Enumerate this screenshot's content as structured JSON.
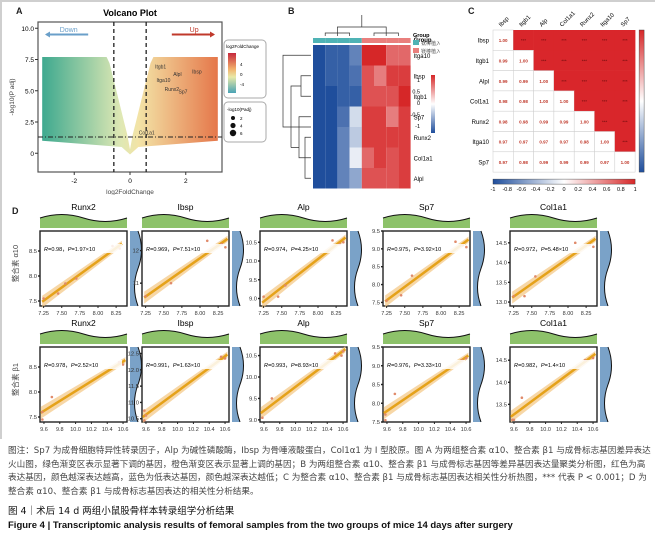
{
  "panels": {
    "A": {
      "label": "A",
      "chart_data": {
        "type": "scatter",
        "title": "Volcano Plot",
        "xlabel": "log2FoldChange",
        "ylabel": "-log10(P adj)",
        "xlim": [
          -3.3,
          3.3
        ],
        "ylim": [
          -1.5,
          10.5
        ],
        "xticks": [
          -2,
          0,
          2
        ],
        "yticks": [
          0,
          2.5,
          5.0,
          7.5,
          10.0
        ],
        "ytick_labels": [
          "0",
          "2.5",
          "5.0",
          "7.5",
          "10.0"
        ],
        "xtick_labels": [
          "-2",
          "0",
          "2"
        ],
        "vlines": [
          -0.58,
          0.58
        ],
        "hline": 1.3,
        "annotations": {
          "down": "Down",
          "up": "Up"
        },
        "labeled_genes": [
          {
            "name": "Itgb1",
            "x": 1.1,
            "y": 6.8
          },
          {
            "name": "Alpl",
            "x": 1.7,
            "y": 6.2
          },
          {
            "name": "Ibsp",
            "x": 2.4,
            "y": 6.4
          },
          {
            "name": "Itga10",
            "x": 1.2,
            "y": 5.7
          },
          {
            "name": "Runx2",
            "x": 1.5,
            "y": 5.0
          },
          {
            "name": "Sp7",
            "x": 1.9,
            "y": 4.8
          },
          {
            "name": "Col1a1",
            "x": 0.6,
            "y": 1.5
          }
        ],
        "legend_color": {
          "title": "log2FoldChange",
          "ticks": [
            "4",
            "0",
            "-4"
          ]
        },
        "legend_size": {
          "title": "-log10(Padj)",
          "ticks": [
            "2",
            "4",
            "6"
          ]
        }
      }
    },
    "B": {
      "label": "B",
      "chart_data": {
        "type": "heatmap",
        "rows": [
          "Itga10",
          "Ibsp",
          "Itgb1",
          "Sp7",
          "Runx2",
          "Col1a1",
          "Alpl"
        ],
        "group_label": "Group",
        "legend_group_title": "Group",
        "groups": [
          {
            "name": "钛棒植入组",
            "color": "#4fb3b5"
          },
          {
            "name": "镁棒植入组",
            "color": "#e97f7d"
          }
        ],
        "values": [
          [
            -1.0,
            -0.9,
            -0.9,
            -0.7,
            1.0,
            1.1,
            0.7,
            0.7
          ],
          [
            -1.0,
            -0.9,
            -0.9,
            -0.8,
            0.8,
            0.6,
            0.9,
            0.9
          ],
          [
            -1.0,
            -1.0,
            -0.9,
            -0.9,
            0.8,
            0.8,
            0.8,
            1.0
          ],
          [
            -1.1,
            -1.1,
            -0.8,
            -0.2,
            0.9,
            0.9,
            0.6,
            0.9
          ],
          [
            -1.1,
            -1.1,
            -0.7,
            -0.3,
            0.9,
            0.9,
            0.9,
            0.9
          ],
          [
            -1.1,
            -1.1,
            -0.7,
            -0.1,
            0.7,
            0.9,
            0.8,
            0.9
          ],
          [
            -1.1,
            -1.1,
            -0.7,
            -0.5,
            0.8,
            0.8,
            0.8,
            0.9
          ]
        ],
        "colorbar_ticks": [
          "1",
          "0.5",
          "0",
          "-0.5",
          "-1"
        ],
        "range": [
          -1,
          1
        ]
      }
    },
    "C": {
      "label": "C",
      "chart_data": {
        "type": "heatmap",
        "labels": [
          "Ibsp",
          "Itgb1",
          "Alpl",
          "Col1a1",
          "Runx2",
          "Itga10",
          "Sp7"
        ],
        "col_labels": [
          "Ibsp",
          "Itgb1",
          "Alp",
          "Col1a1",
          "Runx2",
          "Itga10",
          "Sp7"
        ],
        "lower": [
          [
            "1.00"
          ],
          [
            "0.99",
            "1.00"
          ],
          [
            "0.99",
            "0.99",
            "1.00"
          ],
          [
            "0.98",
            "0.98",
            "1.00",
            "1.00"
          ],
          [
            "0.98",
            "0.98",
            "0.99",
            "0.99",
            "1.00"
          ],
          [
            "0.97",
            "0.97",
            "0.97",
            "0.97",
            "0.98",
            "1.00"
          ],
          [
            "0.97",
            "0.98",
            "0.99",
            "0.99",
            "0.99",
            "0.97",
            "1.00"
          ]
        ],
        "upper_marker": "***",
        "colorbar_ticks": [
          "-1",
          "-0.8",
          "-0.6",
          "-0.4",
          "-0.2",
          "0",
          "0.2",
          "0.4",
          "0.6",
          "0.8",
          "1"
        ],
        "range": [
          -1,
          1
        ]
      }
    },
    "D": {
      "label": "D",
      "chart_data": [
        {
          "type": "scatter",
          "row": "整合素 α10",
          "gene": "Runx2",
          "R": "0.98",
          "P": "1.97×10",
          "xticks": [
            "7.25",
            "7.50",
            "7.75",
            "8.00",
            "8.25"
          ],
          "xlim": [
            7.2,
            8.4
          ],
          "yticks": [
            "7.5",
            "8.0",
            "8.5"
          ],
          "ylim": [
            7.4,
            8.9
          ],
          "points": [
            [
              7.25,
              7.55
            ],
            [
              7.45,
              7.65
            ],
            [
              7.55,
              7.85
            ],
            [
              7.7,
              7.95
            ],
            [
              8.2,
              8.6
            ],
            [
              8.3,
              8.55
            ]
          ]
        },
        {
          "type": "scatter",
          "row": "整合素 α10",
          "gene": "Ibsp",
          "R": "0.969",
          "P": "7.51×10",
          "xticks": [
            "7.25",
            "7.50",
            "7.75",
            "8.00",
            "8.25"
          ],
          "xlim": [
            7.2,
            8.4
          ],
          "yticks": [
            "11",
            "12"
          ],
          "ylim": [
            10.3,
            12.6
          ],
          "points": [
            [
              7.25,
              10.6
            ],
            [
              7.6,
              11.0
            ],
            [
              8.1,
              12.3
            ],
            [
              8.3,
              12.2
            ],
            [
              8.35,
              12.1
            ]
          ]
        },
        {
          "type": "scatter",
          "row": "整合素 α10",
          "gene": "Alp",
          "R": "0.974",
          "P": "4.25×10",
          "xticks": [
            "7.25",
            "7.50",
            "7.75",
            "8.00",
            "8.25"
          ],
          "xlim": [
            7.2,
            8.4
          ],
          "yticks": [
            "9.0",
            "9.5",
            "10.0",
            "10.5"
          ],
          "ylim": [
            8.8,
            10.8
          ],
          "points": [
            [
              7.25,
              9.05
            ],
            [
              7.45,
              9.05
            ],
            [
              7.55,
              9.35
            ],
            [
              8.2,
              10.55
            ],
            [
              8.3,
              10.45
            ],
            [
              8.35,
              10.5
            ]
          ]
        },
        {
          "type": "scatter",
          "row": "整合素 α10",
          "gene": "Sp7",
          "R": "0.975",
          "P": "3.92×10",
          "xticks": [
            "7.25",
            "7.50",
            "7.75",
            "8.00",
            "8.25"
          ],
          "xlim": [
            7.2,
            8.4
          ],
          "yticks": [
            "7.5",
            "8.0",
            "8.5",
            "9.0",
            "9.5"
          ],
          "ylim": [
            7.4,
            9.5
          ],
          "points": [
            [
              7.25,
              7.55
            ],
            [
              7.45,
              7.7
            ],
            [
              7.6,
              8.25
            ],
            [
              8.2,
              9.2
            ],
            [
              8.3,
              9.1
            ],
            [
              8.35,
              9.05
            ]
          ]
        },
        {
          "type": "scatter",
          "row": "整合素 α10",
          "gene": "Col1a1",
          "R": "0.972",
          "P": "5.48×10",
          "xticks": [
            "7.25",
            "7.50",
            "7.75",
            "8.00",
            "8.25"
          ],
          "xlim": [
            7.2,
            8.4
          ],
          "yticks": [
            "13.0",
            "13.5",
            "14.0",
            "14.5"
          ],
          "ylim": [
            12.9,
            14.8
          ],
          "points": [
            [
              7.25,
              13.15
            ],
            [
              7.4,
              13.15
            ],
            [
              7.55,
              13.65
            ],
            [
              8.1,
              14.5
            ],
            [
              8.3,
              14.45
            ],
            [
              8.35,
              14.4
            ]
          ]
        },
        {
          "type": "scatter",
          "row": "整合素 β1",
          "gene": "Runx2",
          "R": "0.978",
          "P": "2.52×10",
          "xticks": [
            "9.6",
            "9.8",
            "10.0",
            "10.2",
            "10.4",
            "10.6"
          ],
          "xlim": [
            9.55,
            10.65
          ],
          "yticks": [
            "7.5",
            "8.0",
            "8.5"
          ],
          "ylim": [
            7.4,
            8.9
          ],
          "points": [
            [
              9.58,
              7.45
            ],
            [
              9.58,
              7.6
            ],
            [
              9.7,
              7.9
            ],
            [
              10.55,
              8.6
            ],
            [
              10.6,
              8.55
            ]
          ]
        },
        {
          "type": "scatter",
          "row": "整合素 β1",
          "gene": "Ibsp",
          "R": "0.991",
          "P": "1.63×10",
          "xticks": [
            "9.6",
            "9.8",
            "10.0",
            "10.2",
            "10.4",
            "10.6"
          ],
          "xlim": [
            9.55,
            10.65
          ],
          "yticks": [
            "10.5",
            "11.0",
            "11.5",
            "12.0",
            "12.5"
          ],
          "ylim": [
            10.4,
            12.7
          ],
          "points": [
            [
              9.58,
              10.45
            ],
            [
              9.58,
              10.75
            ],
            [
              9.6,
              10.6
            ],
            [
              10.55,
              12.4
            ],
            [
              10.6,
              12.35
            ]
          ]
        },
        {
          "type": "scatter",
          "row": "整合素 β1",
          "gene": "Alp",
          "R": "0.993",
          "P": "8.93×10",
          "xticks": [
            "9.6",
            "9.8",
            "10.0",
            "10.2",
            "10.4",
            "10.6"
          ],
          "xlim": [
            9.55,
            10.65
          ],
          "yticks": [
            "9.0",
            "9.5",
            "10.0",
            "10.5"
          ],
          "ylim": [
            8.95,
            10.7
          ],
          "points": [
            [
              9.58,
              9.05
            ],
            [
              9.7,
              9.5
            ],
            [
              10.5,
              10.55
            ],
            [
              10.58,
              10.5
            ],
            [
              10.6,
              10.6
            ]
          ]
        },
        {
          "type": "scatter",
          "row": "整合素 β1",
          "gene": "Sp7",
          "R": "0.976",
          "P": "3.33×10",
          "xticks": [
            "9.6",
            "9.8",
            "10.0",
            "10.2",
            "10.4",
            "10.6"
          ],
          "xlim": [
            9.55,
            10.65
          ],
          "yticks": [
            "7.5",
            "8.0",
            "8.5",
            "9.0",
            "9.5"
          ],
          "ylim": [
            7.5,
            9.5
          ],
          "points": [
            [
              9.58,
              7.55
            ],
            [
              9.58,
              7.7
            ],
            [
              9.7,
              8.25
            ],
            [
              10.55,
              9.15
            ],
            [
              10.6,
              9.2
            ]
          ]
        },
        {
          "type": "scatter",
          "row": "整合素 β1",
          "gene": "Col1a1",
          "R": "0.982",
          "P": "1.4×10",
          "xticks": [
            "9.6",
            "9.8",
            "10.0",
            "10.2",
            "10.4",
            "10.6"
          ],
          "xlim": [
            9.55,
            10.65
          ],
          "yticks": [
            "13.5",
            "14.0",
            "14.5"
          ],
          "ylim": [
            13.1,
            14.8
          ],
          "points": [
            [
              9.58,
              13.15
            ],
            [
              9.6,
              13.15
            ],
            [
              9.7,
              13.65
            ],
            [
              10.5,
              14.5
            ],
            [
              10.6,
              14.55
            ]
          ]
        }
      ],
      "row_labels": [
        "整合素 α10",
        "整合素 β1"
      ]
    }
  },
  "caption": {
    "text": "图注：Sp7 为成骨细胞特异性转录因子，Alp 为碱性磷酸酶，Ibsp 为骨唾液酸蛋白，Col1α1 为 Ⅰ 型胶原。图 A 为两组整合素 α10、整合素 β1 与成骨标志基因差异表达火山图，绿色渐变区表示显著下调的基因，橙色渐变区表示显著上调的基因；B 为两组整合素 α10、整合素 β1 与成骨标志基因等差异基因表达量聚类分析图，红色为高表达基因，颜色越深表达越高，蓝色为低表达基因，颜色越深表达越低；C 为整合素 α10、整合素 β1 与成骨标志基因表达相关性分析热图，*** 代表 P < 0.001；D 为整合素 α10、整合素 β1 与成骨标志基因表达的相关性分析结果。",
    "title_cn": "图 4｜术后 14 d 两组小鼠股骨样本转录组学分析结果",
    "title_en": "Figure 4  |  Transcriptomic analysis results of femoral samples from the two groups of mice 14 days after surgery"
  },
  "colors": {
    "up": "#c0392b",
    "down": "#6a9fc9",
    "heat_high": "#d62728",
    "heat_low": "#1f4e9c",
    "fit_line": "#e5a21a",
    "density_top": "#8dc26a",
    "density_side": "#7aa2c8"
  }
}
